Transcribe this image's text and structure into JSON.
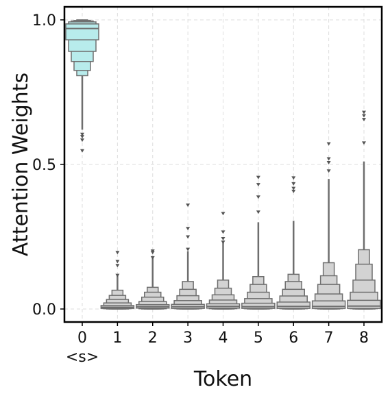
{
  "chart_data": {
    "type": "boxen",
    "xlabel": "Token",
    "ylabel": "Attention Weights",
    "categories": [
      "0",
      "1",
      "2",
      "3",
      "4",
      "5",
      "6",
      "7",
      "8"
    ],
    "special_token": {
      "category": "0",
      "label": "<s>",
      "color": "#00008b"
    },
    "yticks": [
      0.0,
      0.5,
      1.0
    ],
    "ytick_labels": [
      "0.0",
      "0.5",
      "1.0"
    ],
    "ylim": [
      -0.045,
      1.045
    ],
    "grid": true,
    "colors": {
      "first": "#b8ecec",
      "others": "#d3d3d3",
      "edge": "#6e6e6e"
    },
    "series": [
      {
        "name": "",
        "median": 0.97,
        "levels": [
          [
            0.931,
            0.986
          ],
          [
            0.891,
            0.993
          ],
          [
            0.856,
            0.996
          ],
          [
            0.825,
            0.998
          ],
          [
            0.807,
            1.0
          ]
        ],
        "whisker": [
          0.62,
          0.81
        ],
        "outliers": [
          0.605,
          0.597,
          0.585,
          0.548
        ]
      },
      {
        "name": "",
        "median": 0.006,
        "levels": [
          [
            0.002,
            0.012
          ],
          [
            0.001,
            0.021
          ],
          [
            0.0,
            0.033
          ],
          [
            0.0,
            0.047
          ],
          [
            0.0,
            0.065
          ]
        ],
        "whisker": [
          0.065,
          0.115
        ],
        "outliers": [
          0.196,
          0.165,
          0.151,
          0.117
        ]
      },
      {
        "name": "",
        "median": 0.008,
        "levels": [
          [
            0.003,
            0.015
          ],
          [
            0.001,
            0.026
          ],
          [
            0.0,
            0.041
          ],
          [
            0.0,
            0.058
          ],
          [
            0.0,
            0.075
          ]
        ],
        "whisker": [
          0.075,
          0.178
        ],
        "outliers": [
          0.201,
          0.196,
          0.178
        ]
      },
      {
        "name": "",
        "median": 0.008,
        "levels": [
          [
            0.002,
            0.016
          ],
          [
            0.001,
            0.029
          ],
          [
            0.0,
            0.046
          ],
          [
            0.0,
            0.068
          ],
          [
            0.0,
            0.095
          ]
        ],
        "whisker": [
          0.095,
          0.2
        ],
        "outliers": [
          0.36,
          0.279,
          0.25,
          0.207
        ]
      },
      {
        "name": "",
        "median": 0.009,
        "levels": [
          [
            0.003,
            0.018
          ],
          [
            0.001,
            0.031
          ],
          [
            0.0,
            0.049
          ],
          [
            0.0,
            0.072
          ],
          [
            0.0,
            0.1
          ]
        ],
        "whisker": [
          0.1,
          0.23
        ],
        "outliers": [
          0.331,
          0.267,
          0.244,
          0.232
        ]
      },
      {
        "name": "",
        "median": 0.008,
        "levels": [
          [
            0.002,
            0.02
          ],
          [
            0.001,
            0.036
          ],
          [
            0.0,
            0.058
          ],
          [
            0.0,
            0.085
          ],
          [
            0.0,
            0.112
          ]
        ],
        "whisker": [
          0.112,
          0.3
        ],
        "outliers": [
          0.456,
          0.431,
          0.388,
          0.336
        ]
      },
      {
        "name": "",
        "median": 0.009,
        "levels": [
          [
            0.002,
            0.024
          ],
          [
            0.001,
            0.045
          ],
          [
            0.0,
            0.068
          ],
          [
            0.0,
            0.095
          ],
          [
            0.0,
            0.12
          ]
        ],
        "whisker": [
          0.12,
          0.305
        ],
        "outliers": [
          0.454,
          0.434,
          0.418,
          0.408
        ]
      },
      {
        "name": "",
        "median": 0.009,
        "levels": [
          [
            0.002,
            0.028
          ],
          [
            0.001,
            0.052
          ],
          [
            0.0,
            0.085
          ],
          [
            0.0,
            0.115
          ],
          [
            0.0,
            0.16
          ]
        ],
        "whisker": [
          0.16,
          0.45
        ],
        "outliers": [
          0.572,
          0.52,
          0.507,
          0.478
        ]
      },
      {
        "name": "",
        "median": 0.01,
        "levels": [
          [
            0.002,
            0.03
          ],
          [
            0.001,
            0.058
          ],
          [
            0.0,
            0.1
          ],
          [
            0.0,
            0.155
          ],
          [
            0.0,
            0.205
          ]
        ],
        "whisker": [
          0.205,
          0.51
        ],
        "outliers": [
          0.681,
          0.669,
          0.656,
          0.575
        ]
      }
    ]
  }
}
